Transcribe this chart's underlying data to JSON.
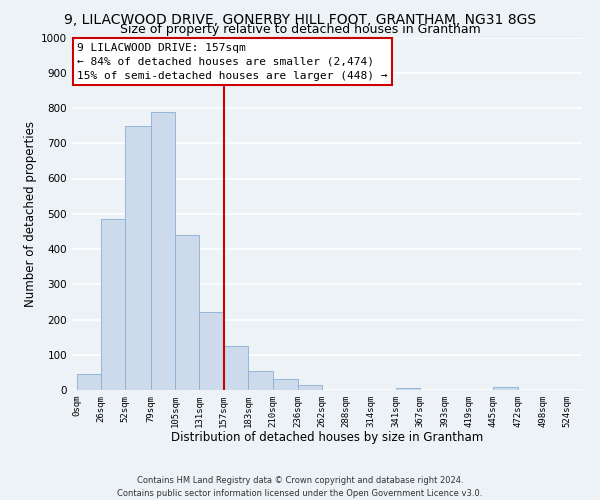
{
  "title": "9, LILACWOOD DRIVE, GONERBY HILL FOOT, GRANTHAM, NG31 8GS",
  "subtitle": "Size of property relative to detached houses in Grantham",
  "xlabel": "Distribution of detached houses by size in Grantham",
  "ylabel": "Number of detached properties",
  "bar_left_edges": [
    0,
    26,
    52,
    79,
    105,
    131,
    157,
    183,
    210,
    236,
    262,
    288,
    314,
    341,
    367,
    393,
    419,
    445,
    472,
    498
  ],
  "bar_heights": [
    45,
    485,
    750,
    790,
    440,
    220,
    125,
    55,
    30,
    15,
    0,
    0,
    0,
    5,
    0,
    0,
    0,
    8,
    0,
    0
  ],
  "bar_widths": [
    26,
    26,
    27,
    26,
    26,
    26,
    26,
    27,
    26,
    26,
    26,
    26,
    27,
    26,
    26,
    26,
    26,
    27,
    26,
    26
  ],
  "bar_color": "#cddaeb",
  "bar_edgecolor": "#8aafd4",
  "vline_x": 157,
  "vline_color": "#cc0000",
  "ylim": [
    0,
    1000
  ],
  "yticks": [
    0,
    100,
    200,
    300,
    400,
    500,
    600,
    700,
    800,
    900,
    1000
  ],
  "xtick_labels": [
    "0sqm",
    "26sqm",
    "52sqm",
    "79sqm",
    "105sqm",
    "131sqm",
    "157sqm",
    "183sqm",
    "210sqm",
    "236sqm",
    "262sqm",
    "288sqm",
    "314sqm",
    "341sqm",
    "367sqm",
    "393sqm",
    "419sqm",
    "445sqm",
    "472sqm",
    "498sqm",
    "524sqm"
  ],
  "xtick_positions": [
    0,
    26,
    52,
    79,
    105,
    131,
    157,
    183,
    210,
    236,
    262,
    288,
    314,
    341,
    367,
    393,
    419,
    445,
    472,
    498,
    524
  ],
  "annotation_title": "9 LILACWOOD DRIVE: 157sqm",
  "annotation_line1": "← 84% of detached houses are smaller (2,474)",
  "annotation_line2": "15% of semi-detached houses are larger (448) →",
  "annotation_box_color": "#ffffff",
  "annotation_box_edgecolor": "#cc0000",
  "footer_line1": "Contains HM Land Registry data © Crown copyright and database right 2024.",
  "footer_line2": "Contains public sector information licensed under the Open Government Licence v3.0.",
  "bg_color": "#edf2f7",
  "grid_color": "#ffffff",
  "title_fontsize": 10,
  "subtitle_fontsize": 9
}
